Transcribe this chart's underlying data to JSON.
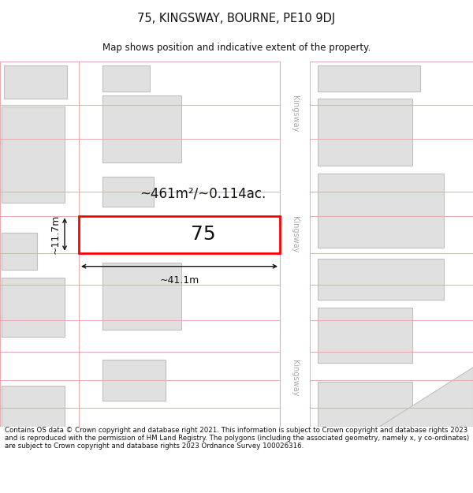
{
  "title": "75, KINGSWAY, BOURNE, PE10 9DJ",
  "subtitle": "Map shows position and indicative extent of the property.",
  "footer": "Contains OS data © Crown copyright and database right 2021. This information is subject to Crown copyright and database rights 2023 and is reproduced with the permission of HM Land Registry. The polygons (including the associated geometry, namely x, y co-ordinates) are subject to Crown copyright and database rights 2023 Ordnance Survey 100026316.",
  "bg_color": "#ffffff",
  "map_bg": "#ffffff",
  "road_edge_color": "#e8aaaa",
  "building_fill": "#e0e0e0",
  "building_edge": "#c0c0c0",
  "highlight_fill": "#ffffff",
  "highlight_edge": "#ff0000",
  "highlight_edge_width": 2.0,
  "dim_color": "#111111",
  "kingsway_label_color": "#aaaaaa",
  "area_text": "~461m²/~0.114ac.",
  "width_label": "~41.1m",
  "height_label": "~11.7m",
  "plot_number": "75",
  "road_label": "Kingsway"
}
